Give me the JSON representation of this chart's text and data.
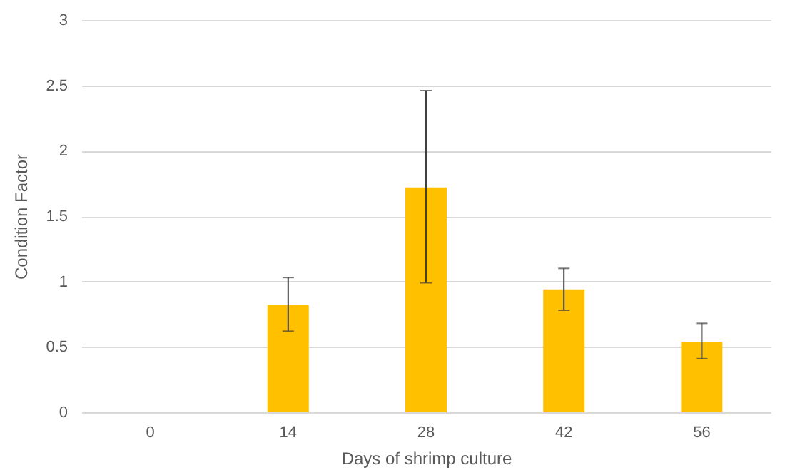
{
  "chart_data": {
    "type": "bar",
    "xlabel": "Days of shrimp culture",
    "ylabel": "Condition Factor",
    "categories": [
      "0",
      "14",
      "28",
      "42",
      "56"
    ],
    "values": [
      null,
      0.82,
      1.72,
      0.94,
      0.54
    ],
    "errors": [
      null,
      [
        0.62,
        1.03
      ],
      [
        0.99,
        2.46
      ],
      [
        0.78,
        1.1
      ],
      [
        0.41,
        0.68
      ]
    ],
    "color": "#ffc000",
    "ylim": [
      0,
      3
    ],
    "yticks": [
      0,
      0.5,
      1,
      1.5,
      2,
      2.5,
      3
    ],
    "grid": "y"
  }
}
